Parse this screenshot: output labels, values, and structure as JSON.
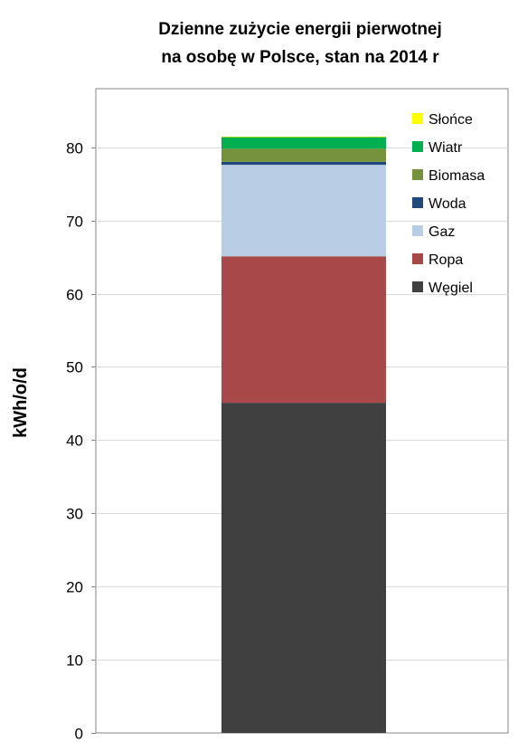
{
  "chart_data": {
    "type": "bar",
    "stacked": true,
    "title": [
      "Dzienne zużycie energii pierwotnej",
      "na osobę w Polsce, stan na 2014 r"
    ],
    "xlabel": "",
    "ylabel": "kWh/o/d",
    "ylim": [
      0,
      88
    ],
    "yticks": [
      0,
      10,
      20,
      30,
      40,
      50,
      60,
      70,
      80
    ],
    "grid": true,
    "legend_position": "top-right",
    "categories": [
      ""
    ],
    "series": [
      {
        "name": "Węgiel",
        "values": [
          45.1
        ],
        "color": "#404040"
      },
      {
        "name": "Ropa",
        "values": [
          20.0
        ],
        "color": "#A84848"
      },
      {
        "name": "Gaz",
        "values": [
          12.5
        ],
        "color": "#B9CDE5"
      },
      {
        "name": "Woda",
        "values": [
          0.4
        ],
        "color": "#1F497D"
      },
      {
        "name": "Biomasa",
        "values": [
          1.8
        ],
        "color": "#76923C"
      },
      {
        "name": "Wiatr",
        "values": [
          1.6
        ],
        "color": "#00B050"
      },
      {
        "name": "Słońce",
        "values": [
          0.05
        ],
        "color": "#FFFF00"
      }
    ],
    "legend_order": [
      "Słońce",
      "Wiatr",
      "Biomasa",
      "Woda",
      "Gaz",
      "Ropa",
      "Węgiel"
    ]
  }
}
